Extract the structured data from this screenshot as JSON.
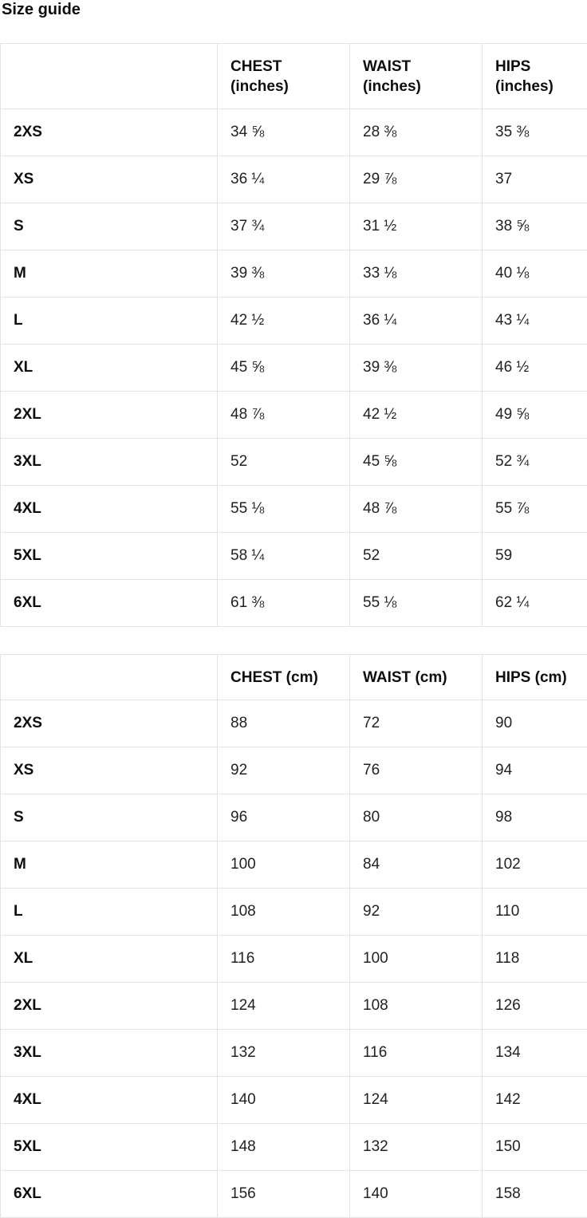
{
  "page": {
    "title": "Size guide"
  },
  "colors": {
    "border": "#e3e3e3",
    "heading_text": "#0e0e0e",
    "value_text": "#222222",
    "background": "#ffffff"
  },
  "tables": [
    {
      "name": "inches",
      "columns": [
        "",
        "CHEST\n(inches)",
        "WAIST\n(inches)",
        "HIPS\n(inches)"
      ],
      "rows": [
        {
          "size": "2XS",
          "chest": "34 ⅝",
          "waist": "28 ⅜",
          "hips": "35 ⅜"
        },
        {
          "size": "XS",
          "chest": "36 ¼",
          "waist": "29 ⅞",
          "hips": "37"
        },
        {
          "size": "S",
          "chest": "37 ¾",
          "waist": "31 ½",
          "hips": "38 ⅝"
        },
        {
          "size": "M",
          "chest": "39 ⅜",
          "waist": "33 ⅛",
          "hips": "40 ⅛"
        },
        {
          "size": "L",
          "chest": "42 ½",
          "waist": "36 ¼",
          "hips": "43 ¼"
        },
        {
          "size": "XL",
          "chest": "45 ⅝",
          "waist": "39 ⅜",
          "hips": "46 ½"
        },
        {
          "size": "2XL",
          "chest": "48 ⅞",
          "waist": "42 ½",
          "hips": "49 ⅝"
        },
        {
          "size": "3XL",
          "chest": "52",
          "waist": "45 ⅝",
          "hips": "52 ¾"
        },
        {
          "size": "4XL",
          "chest": "55 ⅛",
          "waist": "48 ⅞",
          "hips": "55 ⅞"
        },
        {
          "size": "5XL",
          "chest": "58 ¼",
          "waist": "52",
          "hips": "59"
        },
        {
          "size": "6XL",
          "chest": "61 ⅜",
          "waist": "55 ⅛",
          "hips": "62 ¼"
        }
      ]
    },
    {
      "name": "cm",
      "columns": [
        "",
        "CHEST (cm)",
        "WAIST (cm)",
        "HIPS (cm)"
      ],
      "rows": [
        {
          "size": "2XS",
          "chest": "88",
          "waist": "72",
          "hips": "90"
        },
        {
          "size": "XS",
          "chest": "92",
          "waist": "76",
          "hips": "94"
        },
        {
          "size": "S",
          "chest": "96",
          "waist": "80",
          "hips": "98"
        },
        {
          "size": "M",
          "chest": "100",
          "waist": "84",
          "hips": "102"
        },
        {
          "size": "L",
          "chest": "108",
          "waist": "92",
          "hips": "110"
        },
        {
          "size": "XL",
          "chest": "116",
          "waist": "100",
          "hips": "118"
        },
        {
          "size": "2XL",
          "chest": "124",
          "waist": "108",
          "hips": "126"
        },
        {
          "size": "3XL",
          "chest": "132",
          "waist": "116",
          "hips": "134"
        },
        {
          "size": "4XL",
          "chest": "140",
          "waist": "124",
          "hips": "142"
        },
        {
          "size": "5XL",
          "chest": "148",
          "waist": "132",
          "hips": "150"
        },
        {
          "size": "6XL",
          "chest": "156",
          "waist": "140",
          "hips": "158"
        }
      ]
    }
  ]
}
